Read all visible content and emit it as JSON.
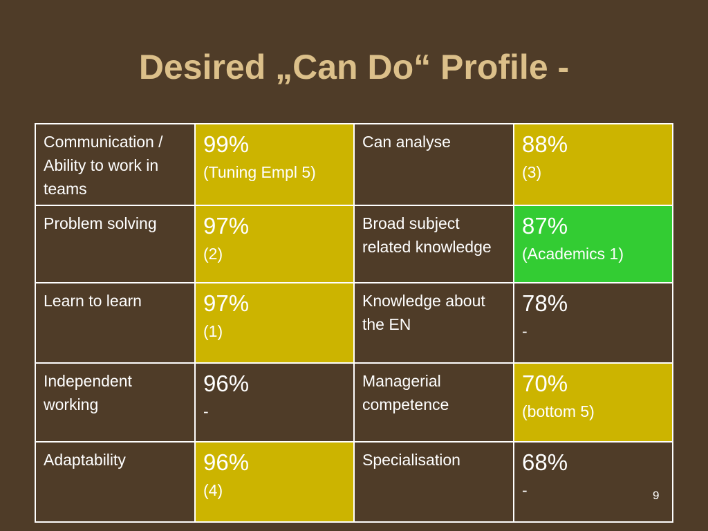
{
  "title": "Desired „Can Do“ Profile -",
  "rows": [
    {
      "left": {
        "label": "Communication / Ability to work in teams",
        "percent": "99%",
        "note": "(Tuning Empl 5)",
        "highlight": "#ccb400"
      },
      "right": {
        "label": "Can analyse",
        "percent": "88%",
        "note": "(3)",
        "highlight": "#ccb400"
      }
    },
    {
      "left": {
        "label": "Problem solving",
        "percent": "97%",
        "note": "(2)",
        "highlight": "#ccb400"
      },
      "right": {
        "label": "Broad subject related knowledge",
        "percent": "87%",
        "note": "(Academics 1)",
        "highlight": "#33cc33"
      }
    },
    {
      "left": {
        "label": "Learn to learn",
        "percent": "97%",
        "note": "(1)",
        "highlight": "#ccb400"
      },
      "right": {
        "label": "Knowledge about the EN",
        "percent": "78%",
        "note": "-",
        "highlight": "none"
      }
    },
    {
      "left": {
        "label": "Independent working",
        "percent": "96%",
        "note": "-",
        "highlight": "none"
      },
      "right": {
        "label": "Managerial competence",
        "percent": "70%",
        "note": "(bottom 5)",
        "highlight": "#ccb400"
      }
    },
    {
      "left": {
        "label": "Adaptability",
        "percent": "96%",
        "note": "(4)",
        "highlight": "#ccb400"
      },
      "right": {
        "label": "Specialisation",
        "percent": "68%",
        "note": "-",
        "highlight": "none"
      }
    }
  ],
  "page_number": "9",
  "colors": {
    "background": "#4f3c28",
    "title": "#dcc08a",
    "yellow_highlight": "#ccb400",
    "green_highlight": "#33cc33",
    "border": "#ffffff"
  }
}
